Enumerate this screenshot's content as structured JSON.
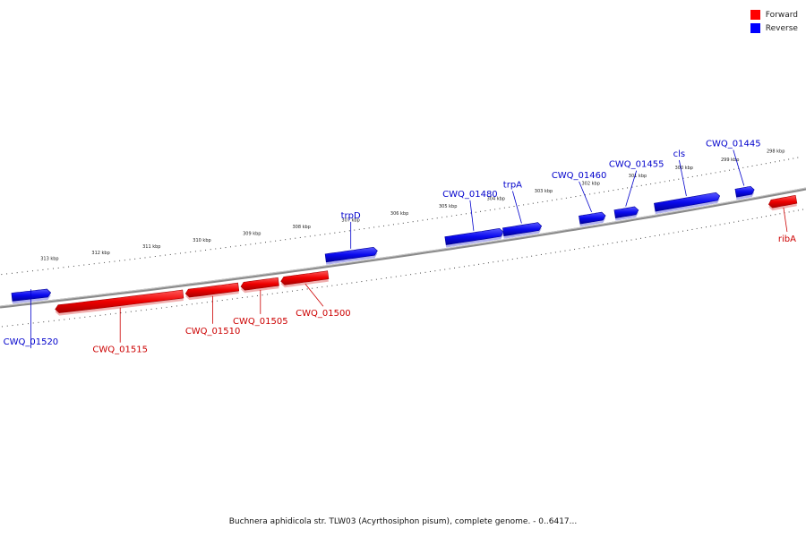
{
  "legend": {
    "forward": {
      "label": "Forward",
      "color": "#ff0000"
    },
    "reverse": {
      "label": "Reverse",
      "color": "#0000ff"
    }
  },
  "caption": "Buchnera aphidicola str. TLW03 (Acyrthosiphon pisum), complete genome. - 0..6417...",
  "ticks": [
    {
      "label": "313 kbp",
      "kbp": 313
    },
    {
      "label": "312 kbp",
      "kbp": 312
    },
    {
      "label": "311 kbp",
      "kbp": 311
    },
    {
      "label": "310 kbp",
      "kbp": 310
    },
    {
      "label": "309 kbp",
      "kbp": 309
    },
    {
      "label": "308 kbp",
      "kbp": 308
    },
    {
      "label": "307 kbp",
      "kbp": 307
    },
    {
      "label": "306 kbp",
      "kbp": 306
    },
    {
      "label": "305 kbp",
      "kbp": 305
    },
    {
      "label": "304 kbp",
      "kbp": 304
    },
    {
      "label": "303 kbp",
      "kbp": 303
    },
    {
      "label": "302 kbp",
      "kbp": 302
    },
    {
      "label": "301 kbp",
      "kbp": 301
    },
    {
      "label": "300 kbp",
      "kbp": 300
    },
    {
      "label": "299 kbp",
      "kbp": 299
    },
    {
      "label": "298 kbp",
      "kbp": 298
    }
  ],
  "genes": [
    {
      "name": "CWQ_01520",
      "strand": "reverse",
      "start_kbp": 313.8,
      "end_kbp": 313.05
    },
    {
      "name": "CWQ_01515",
      "strand": "forward",
      "start_kbp": 313.0,
      "end_kbp": 310.5
    },
    {
      "name": "CWQ_01510",
      "strand": "forward",
      "start_kbp": 310.45,
      "end_kbp": 309.4
    },
    {
      "name": "CWQ_01505",
      "strand": "forward",
      "start_kbp": 309.35,
      "end_kbp": 308.6
    },
    {
      "name": "CWQ_01500",
      "strand": "forward",
      "start_kbp": 308.55,
      "end_kbp": 307.6
    },
    {
      "name": "trpD",
      "strand": "reverse",
      "start_kbp": 307.6,
      "end_kbp": 306.55
    },
    {
      "name": "CWQ_01480",
      "strand": "reverse",
      "start_kbp": 305.15,
      "end_kbp": 303.95
    },
    {
      "name": "trpA",
      "strand": "reverse",
      "start_kbp": 303.95,
      "end_kbp": 303.15
    },
    {
      "name": "CWQ_01460",
      "strand": "reverse",
      "start_kbp": 302.35,
      "end_kbp": 301.8
    },
    {
      "name": "CWQ_01455",
      "strand": "reverse",
      "start_kbp": 301.6,
      "end_kbp": 301.1
    },
    {
      "name": "cls",
      "strand": "reverse",
      "start_kbp": 300.75,
      "end_kbp": 299.35
    },
    {
      "name": "CWQ_01445",
      "strand": "reverse",
      "start_kbp": 299.0,
      "end_kbp": 298.6
    },
    {
      "name": "ribA",
      "strand": "forward",
      "start_kbp": 298.35,
      "end_kbp": 297.75
    }
  ]
}
